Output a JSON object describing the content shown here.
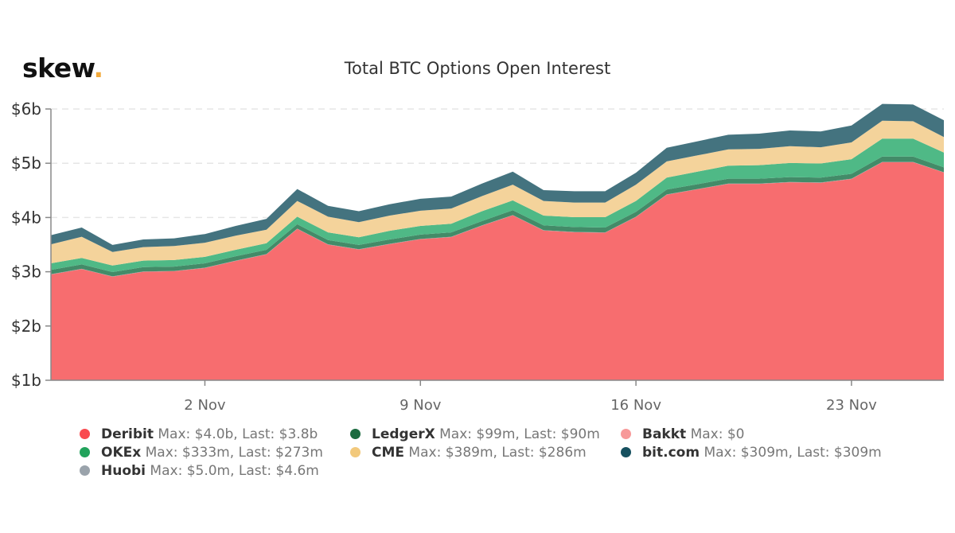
{
  "logo": {
    "text": "skew",
    "dot": "."
  },
  "chart_data": {
    "type": "area",
    "stacked": true,
    "title": "Total BTC Options Open Interest",
    "xlabel": "",
    "ylabel": "",
    "ylim": [
      1,
      6
    ],
    "y_unit": "$b",
    "yticks": [
      {
        "value": 1,
        "label": "$1b"
      },
      {
        "value": 2,
        "label": "$2b"
      },
      {
        "value": 3,
        "label": "$3b"
      },
      {
        "value": 4,
        "label": "$4b"
      },
      {
        "value": 5,
        "label": "$5b"
      },
      {
        "value": 6,
        "label": "$6b"
      }
    ],
    "x": [
      "28 Oct",
      "29 Oct",
      "30 Oct",
      "31 Oct",
      "1 Nov",
      "2 Nov",
      "3 Nov",
      "4 Nov",
      "5 Nov",
      "6 Nov",
      "7 Nov",
      "8 Nov",
      "9 Nov",
      "10 Nov",
      "11 Nov",
      "12 Nov",
      "13 Nov",
      "14 Nov",
      "15 Nov",
      "16 Nov",
      "17 Nov",
      "18 Nov",
      "19 Nov",
      "20 Nov",
      "21 Nov",
      "22 Nov",
      "23 Nov",
      "24 Nov",
      "25 Nov",
      "26 Nov"
    ],
    "xticks": [
      {
        "index": 5,
        "label": "2 Nov"
      },
      {
        "index": 12,
        "label": "9 Nov"
      },
      {
        "index": 19,
        "label": "16 Nov"
      },
      {
        "index": 26,
        "label": "23 Nov"
      }
    ],
    "grid": true,
    "legend_position": "bottom",
    "series": [
      {
        "name": "Deribit",
        "color": "#f76d6f",
        "legend_color": "#f94a4f",
        "stats": "Max: $4.0b, Last: $3.8b",
        "values": [
          1.95,
          2.05,
          1.91,
          2.0,
          2.01,
          2.07,
          2.2,
          2.32,
          2.79,
          2.5,
          2.41,
          2.51,
          2.6,
          2.64,
          2.85,
          3.04,
          2.76,
          2.73,
          2.72,
          3.01,
          3.42,
          3.52,
          3.62,
          3.62,
          3.65,
          3.64,
          3.71,
          4.02,
          4.02,
          3.83
        ]
      },
      {
        "name": "Huobi",
        "color": "#9aa3ab",
        "legend_color": "#9aa3ab",
        "stats": "Max: $5.0m, Last: $4.6m",
        "values": [
          0.005,
          0.005,
          0.005,
          0.005,
          0.005,
          0.005,
          0.005,
          0.005,
          0.005,
          0.005,
          0.005,
          0.005,
          0.005,
          0.005,
          0.005,
          0.005,
          0.005,
          0.005,
          0.005,
          0.005,
          0.005,
          0.005,
          0.005,
          0.005,
          0.005,
          0.005,
          0.005,
          0.005,
          0.005,
          0.0046
        ]
      },
      {
        "name": "LedgerX",
        "color": "#438b68",
        "legend_color": "#1b6b3f",
        "stats": "Max: $99m, Last: $90m",
        "values": [
          0.08,
          0.08,
          0.08,
          0.08,
          0.08,
          0.08,
          0.08,
          0.08,
          0.08,
          0.08,
          0.08,
          0.08,
          0.08,
          0.08,
          0.08,
          0.09,
          0.09,
          0.09,
          0.09,
          0.09,
          0.09,
          0.09,
          0.09,
          0.09,
          0.09,
          0.09,
          0.09,
          0.099,
          0.099,
          0.09
        ]
      },
      {
        "name": "OKEx",
        "color": "#4fb986",
        "legend_color": "#22a35c",
        "stats": "Max: $333m, Last: $273m",
        "values": [
          0.12,
          0.12,
          0.12,
          0.12,
          0.12,
          0.12,
          0.12,
          0.12,
          0.14,
          0.14,
          0.14,
          0.16,
          0.16,
          0.16,
          0.18,
          0.18,
          0.18,
          0.18,
          0.19,
          0.2,
          0.22,
          0.23,
          0.24,
          0.25,
          0.26,
          0.26,
          0.27,
          0.33,
          0.33,
          0.273
        ]
      },
      {
        "name": "CME",
        "color": "#f4d39b",
        "legend_color": "#f2c97c",
        "stats": "Max: $389m, Last: $286m",
        "values": [
          0.35,
          0.39,
          0.25,
          0.25,
          0.26,
          0.26,
          0.26,
          0.25,
          0.29,
          0.29,
          0.28,
          0.28,
          0.28,
          0.28,
          0.28,
          0.29,
          0.27,
          0.27,
          0.27,
          0.3,
          0.3,
          0.3,
          0.3,
          0.3,
          0.31,
          0.3,
          0.31,
          0.33,
          0.32,
          0.286
        ]
      },
      {
        "name": "Bakkt",
        "color": "#f79999",
        "legend_color": "#f79999",
        "stats": "Max: $0",
        "values": [
          0,
          0,
          0,
          0,
          0,
          0,
          0,
          0,
          0,
          0,
          0,
          0,
          0,
          0,
          0,
          0,
          0,
          0,
          0,
          0,
          0,
          0,
          0,
          0,
          0,
          0,
          0,
          0,
          0,
          0
        ]
      },
      {
        "name": "bit.com",
        "color": "#44737f",
        "legend_color": "#16505f",
        "stats": "Max: $309m, Last: $309m",
        "values": [
          0.17,
          0.17,
          0.13,
          0.14,
          0.14,
          0.16,
          0.18,
          0.2,
          0.22,
          0.2,
          0.2,
          0.21,
          0.22,
          0.22,
          0.23,
          0.24,
          0.2,
          0.21,
          0.21,
          0.22,
          0.25,
          0.26,
          0.27,
          0.28,
          0.29,
          0.29,
          0.31,
          0.309,
          0.309,
          0.309
        ]
      }
    ],
    "legend_layout": [
      [
        "Deribit",
        "LedgerX",
        "Bakkt"
      ],
      [
        "OKEx",
        "CME",
        "bit.com"
      ],
      [
        "Huobi"
      ]
    ]
  }
}
